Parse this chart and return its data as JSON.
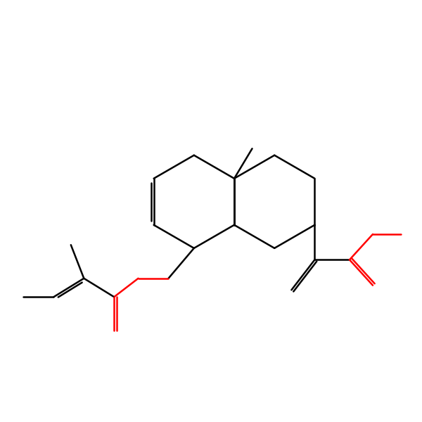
{
  "background_color": "#ffffff",
  "bond_color": "#000000",
  "oxygen_color": "#ff0000",
  "line_width": 1.8,
  "figsize": [
    6.0,
    6.0
  ],
  "dpi": 100
}
